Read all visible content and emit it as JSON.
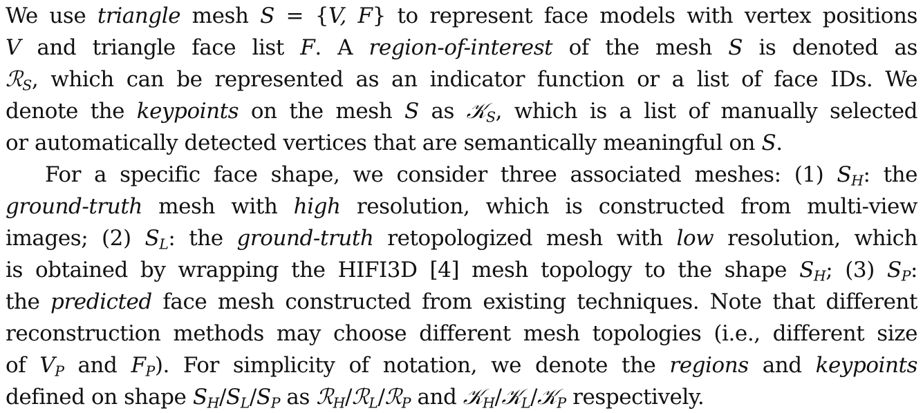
{
  "paragraphs": [
    {
      "indent": false,
      "lines": [
        [
          {
            "t": "We use "
          },
          {
            "t": "triangle",
            "s": "it"
          },
          {
            "t": " mesh "
          },
          {
            "t": "S",
            "s": "it"
          },
          {
            "t": " = {"
          },
          {
            "t": "V, F",
            "s": "it"
          },
          {
            "t": "} to represent face models with vertex positions"
          }
        ],
        [
          {
            "t": "V",
            "s": "it"
          },
          {
            "t": " and triangle face list "
          },
          {
            "t": "F",
            "s": "it"
          },
          {
            "t": ". A "
          },
          {
            "t": "region-of-interest",
            "s": "it"
          },
          {
            "t": " of the mesh "
          },
          {
            "t": "S",
            "s": "it"
          },
          {
            "t": " is denoted as"
          }
        ],
        [
          {
            "t": "ℛ",
            "s": "cal"
          },
          {
            "t": "S",
            "s": "sub"
          },
          {
            "t": ", which can be represented as an indicator function or a list of face IDs. We"
          }
        ],
        [
          {
            "t": "denote the "
          },
          {
            "t": "keypoints",
            "s": "it"
          },
          {
            "t": " on the mesh "
          },
          {
            "t": "S",
            "s": "it"
          },
          {
            "t": " as "
          },
          {
            "t": "𝒦",
            "s": "cal"
          },
          {
            "t": "S",
            "s": "sub"
          },
          {
            "t": ", which is a list of manually selected"
          }
        ],
        [
          {
            "t": "or automatically detected vertices that are semantically meaningful on "
          },
          {
            "t": "S",
            "s": "it"
          },
          {
            "t": "."
          }
        ]
      ]
    },
    {
      "indent": true,
      "lines": [
        [
          {
            "t": "For a specific face shape, we consider three associated meshes: (1) "
          },
          {
            "t": "S",
            "s": "it"
          },
          {
            "t": "H",
            "s": "sub"
          },
          {
            "t": ": the"
          }
        ],
        [
          {
            "t": "ground-truth",
            "s": "it"
          },
          {
            "t": " mesh with "
          },
          {
            "t": "high",
            "s": "it"
          },
          {
            "t": " resolution, which is constructed from multi-view"
          }
        ],
        [
          {
            "t": "images; (2) "
          },
          {
            "t": "S",
            "s": "it"
          },
          {
            "t": "L",
            "s": "sub"
          },
          {
            "t": ": the "
          },
          {
            "t": "ground-truth",
            "s": "it"
          },
          {
            "t": " retopologized mesh with "
          },
          {
            "t": "low",
            "s": "it"
          },
          {
            "t": " resolution, which"
          }
        ],
        [
          {
            "t": "is obtained by wrapping the HIFI3D [4] mesh topology to the shape "
          },
          {
            "t": "S",
            "s": "it"
          },
          {
            "t": "H",
            "s": "sub"
          },
          {
            "t": "; (3) "
          },
          {
            "t": "S",
            "s": "it"
          },
          {
            "t": "P",
            "s": "sub"
          },
          {
            "t": ":"
          }
        ],
        [
          {
            "t": "the "
          },
          {
            "t": "predicted",
            "s": "it"
          },
          {
            "t": " face mesh constructed from existing techniques. Note that different"
          }
        ],
        [
          {
            "t": "reconstruction methods may choose different mesh topologies (i.e., different size"
          }
        ],
        [
          {
            "t": "of "
          },
          {
            "t": "V",
            "s": "it"
          },
          {
            "t": "P",
            "s": "sub"
          },
          {
            "t": " and "
          },
          {
            "t": "F",
            "s": "it"
          },
          {
            "t": "P",
            "s": "sub"
          },
          {
            "t": "). For simplicity of notation, we denote the "
          },
          {
            "t": "regions",
            "s": "it"
          },
          {
            "t": " and "
          },
          {
            "t": "keypoints",
            "s": "it"
          }
        ],
        [
          {
            "t": "defined on shape "
          },
          {
            "t": "S",
            "s": "it"
          },
          {
            "t": "H",
            "s": "sub"
          },
          {
            "t": "/"
          },
          {
            "t": "S",
            "s": "it"
          },
          {
            "t": "L",
            "s": "sub"
          },
          {
            "t": "/"
          },
          {
            "t": "S",
            "s": "it"
          },
          {
            "t": "P",
            "s": "sub"
          },
          {
            "t": " as "
          },
          {
            "t": "ℛ",
            "s": "cal"
          },
          {
            "t": "H",
            "s": "sub"
          },
          {
            "t": "/"
          },
          {
            "t": "ℛ",
            "s": "cal"
          },
          {
            "t": "L",
            "s": "sub"
          },
          {
            "t": "/"
          },
          {
            "t": "ℛ",
            "s": "cal"
          },
          {
            "t": "P",
            "s": "sub"
          },
          {
            "t": " and "
          },
          {
            "t": "𝒦",
            "s": "cal"
          },
          {
            "t": "H",
            "s": "sub"
          },
          {
            "t": "/"
          },
          {
            "t": "𝒦",
            "s": "cal"
          },
          {
            "t": "L",
            "s": "sub"
          },
          {
            "t": "/"
          },
          {
            "t": "𝒦",
            "s": "cal"
          },
          {
            "t": "P",
            "s": "sub"
          },
          {
            "t": " respectively."
          }
        ]
      ]
    }
  ]
}
